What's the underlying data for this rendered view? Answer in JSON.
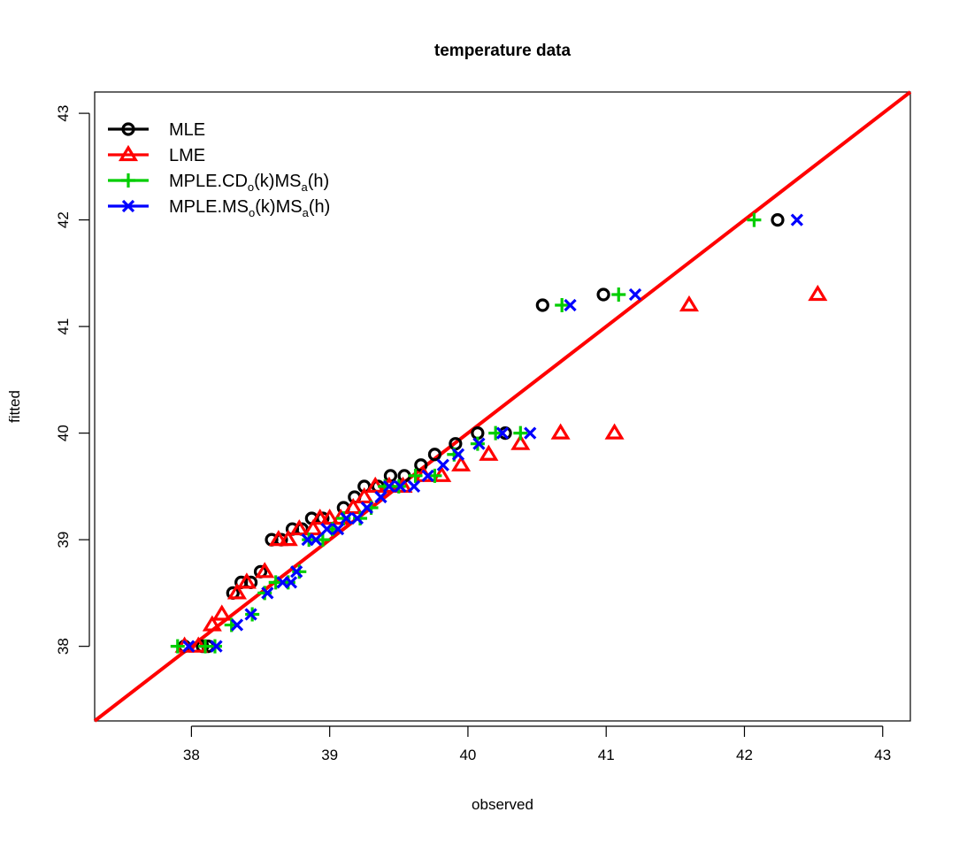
{
  "chart_data": {
    "type": "scatter",
    "title": "temperature data",
    "xlabel": "observed",
    "ylabel": "fitted",
    "xlim": [
      37.3,
      43.2
    ],
    "ylim": [
      37.3,
      43.2
    ],
    "x_ticks": [
      38,
      39,
      40,
      41,
      42,
      43
    ],
    "y_ticks": [
      38,
      39,
      40,
      41,
      42,
      43
    ],
    "reference_line": {
      "slope": 1,
      "intercept": 0,
      "color": "#ff0000"
    },
    "legend": {
      "position": "top-left",
      "entries": [
        {
          "series": "MLE",
          "text": "MLE",
          "sub": []
        },
        {
          "series": "LME",
          "text": "LME",
          "sub": []
        },
        {
          "series": "MPLE_CD",
          "text": "MPLE.CD(k)MS(h)",
          "parts": [
            "MPLE.CD",
            "o",
            "(k)MS",
            "a",
            "(h)"
          ]
        },
        {
          "series": "MPLE_MS",
          "text": "MPLE.MS(k)MS(h)",
          "parts": [
            "MPLE.MS",
            "o",
            "(k)MS",
            "a",
            "(h)"
          ]
        }
      ]
    },
    "series": [
      {
        "name": "MLE",
        "marker": "circle",
        "color": "#000000",
        "points": [
          [
            37.95,
            38.0
          ],
          [
            38.08,
            38.0
          ],
          [
            38.12,
            38.0
          ],
          [
            38.3,
            38.5
          ],
          [
            38.36,
            38.6
          ],
          [
            38.43,
            38.6
          ],
          [
            38.5,
            38.7
          ],
          [
            38.58,
            39.0
          ],
          [
            38.65,
            39.0
          ],
          [
            38.73,
            39.1
          ],
          [
            38.8,
            39.1
          ],
          [
            38.87,
            39.2
          ],
          [
            38.95,
            39.2
          ],
          [
            39.1,
            39.3
          ],
          [
            39.18,
            39.4
          ],
          [
            39.25,
            39.5
          ],
          [
            39.35,
            39.5
          ],
          [
            39.44,
            39.6
          ],
          [
            39.54,
            39.6
          ],
          [
            39.66,
            39.7
          ],
          [
            39.76,
            39.8
          ],
          [
            39.91,
            39.9
          ],
          [
            40.07,
            40.0
          ],
          [
            40.27,
            40.0
          ],
          [
            40.54,
            41.2
          ],
          [
            40.98,
            41.3
          ],
          [
            42.24,
            42.0
          ]
        ]
      },
      {
        "name": "LME",
        "marker": "triangle",
        "color": "#ff0000",
        "points": [
          [
            37.95,
            38.0
          ],
          [
            38.05,
            38.0
          ],
          [
            38.15,
            38.2
          ],
          [
            38.22,
            38.3
          ],
          [
            38.33,
            38.5
          ],
          [
            38.4,
            38.6
          ],
          [
            38.53,
            38.7
          ],
          [
            38.63,
            39.0
          ],
          [
            38.7,
            39.0
          ],
          [
            38.78,
            39.1
          ],
          [
            38.88,
            39.1
          ],
          [
            38.93,
            39.2
          ],
          [
            39.0,
            39.2
          ],
          [
            39.08,
            39.2
          ],
          [
            39.17,
            39.3
          ],
          [
            39.25,
            39.4
          ],
          [
            39.33,
            39.5
          ],
          [
            39.43,
            39.5
          ],
          [
            39.53,
            39.5
          ],
          [
            39.68,
            39.6
          ],
          [
            39.81,
            39.6
          ],
          [
            39.95,
            39.7
          ],
          [
            40.15,
            39.8
          ],
          [
            40.38,
            39.9
          ],
          [
            40.67,
            40.0
          ],
          [
            41.06,
            40.0
          ],
          [
            41.6,
            41.2
          ],
          [
            42.53,
            41.3
          ]
        ]
      },
      {
        "name": "MPLE_CD",
        "marker": "plus",
        "color": "#00cd00",
        "points": [
          [
            37.9,
            38.0
          ],
          [
            38.1,
            38.0
          ],
          [
            38.17,
            38.0
          ],
          [
            38.29,
            38.2
          ],
          [
            38.44,
            38.3
          ],
          [
            38.53,
            38.5
          ],
          [
            38.61,
            38.6
          ],
          [
            38.7,
            38.6
          ],
          [
            38.78,
            38.7
          ],
          [
            38.85,
            39.0
          ],
          [
            38.95,
            39.0
          ],
          [
            39.02,
            39.1
          ],
          [
            39.1,
            39.2
          ],
          [
            39.22,
            39.2
          ],
          [
            39.3,
            39.3
          ],
          [
            39.4,
            39.5
          ],
          [
            39.5,
            39.5
          ],
          [
            39.62,
            39.6
          ],
          [
            39.76,
            39.6
          ],
          [
            39.9,
            39.8
          ],
          [
            40.07,
            39.9
          ],
          [
            40.2,
            40.0
          ],
          [
            40.38,
            40.0
          ],
          [
            40.68,
            41.2
          ],
          [
            41.09,
            41.3
          ],
          [
            42.07,
            42.0
          ]
        ]
      },
      {
        "name": "MPLE_MS",
        "marker": "x",
        "color": "#0000ff",
        "points": [
          [
            37.98,
            38.0
          ],
          [
            38.18,
            38.0
          ],
          [
            38.33,
            38.2
          ],
          [
            38.43,
            38.3
          ],
          [
            38.55,
            38.5
          ],
          [
            38.66,
            38.6
          ],
          [
            38.72,
            38.6
          ],
          [
            38.76,
            38.7
          ],
          [
            38.84,
            39.0
          ],
          [
            38.9,
            39.0
          ],
          [
            38.98,
            39.1
          ],
          [
            39.06,
            39.1
          ],
          [
            39.12,
            39.2
          ],
          [
            39.2,
            39.2
          ],
          [
            39.27,
            39.3
          ],
          [
            39.37,
            39.4
          ],
          [
            39.43,
            39.5
          ],
          [
            39.51,
            39.5
          ],
          [
            39.61,
            39.5
          ],
          [
            39.71,
            39.6
          ],
          [
            39.82,
            39.7
          ],
          [
            39.93,
            39.8
          ],
          [
            40.08,
            39.9
          ],
          [
            40.25,
            40.0
          ],
          [
            40.45,
            40.0
          ],
          [
            40.74,
            41.2
          ],
          [
            41.21,
            41.3
          ],
          [
            42.38,
            42.0
          ]
        ]
      }
    ]
  }
}
